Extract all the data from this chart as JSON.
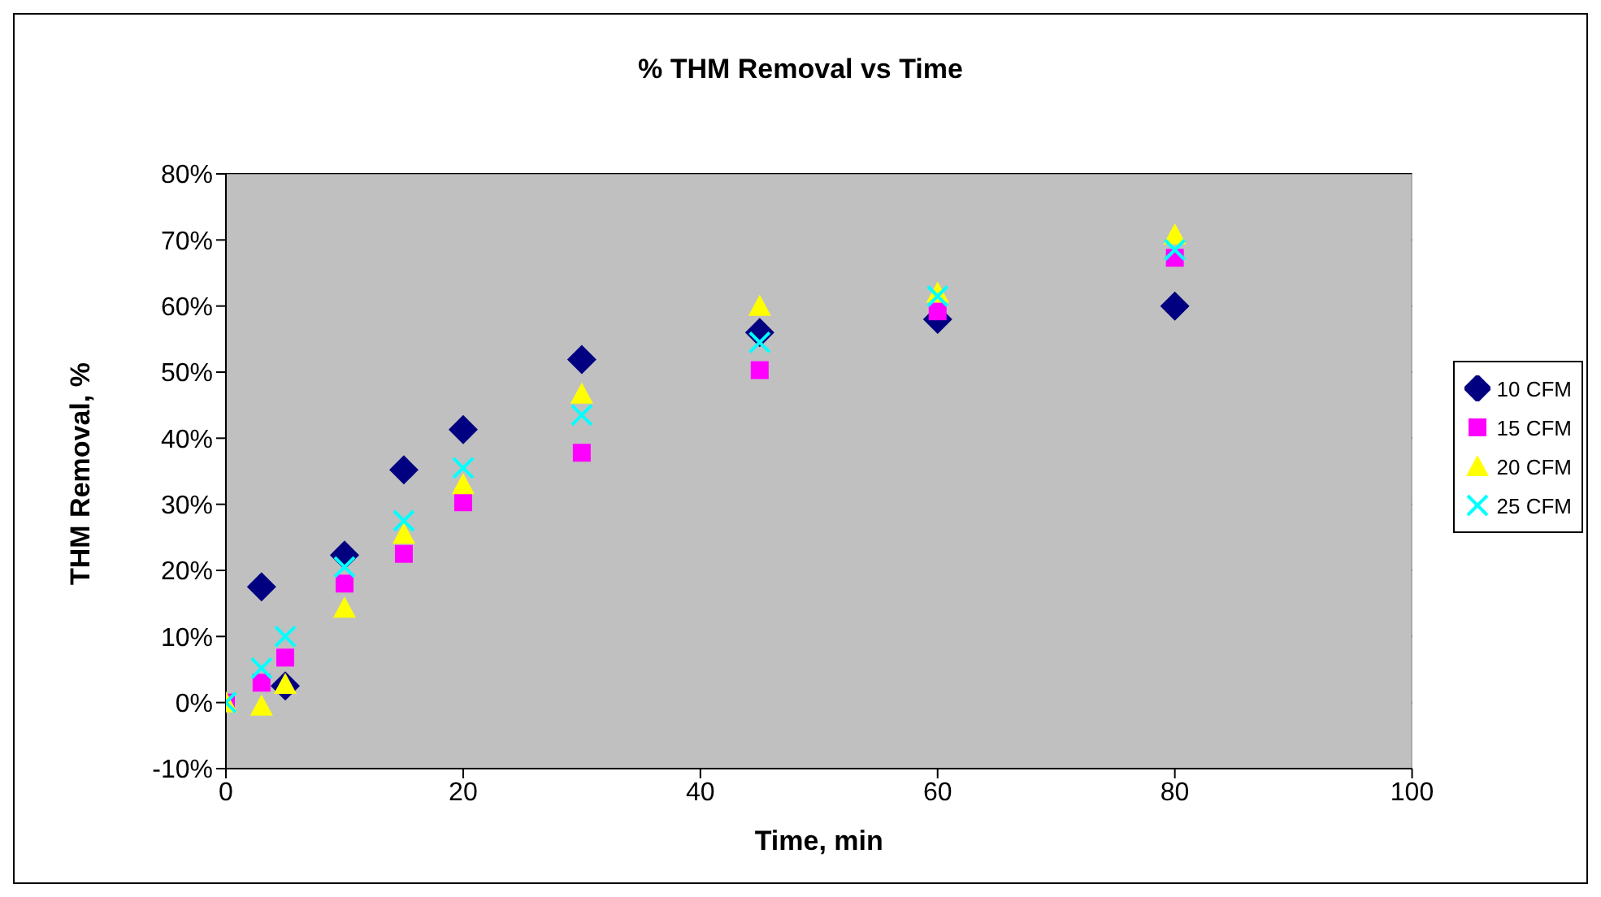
{
  "chart_data": {
    "type": "scatter",
    "title": "% THM Removal vs Time",
    "xlabel": "Time, min",
    "ylabel": "THM Removal, %",
    "x": [
      0,
      3,
      5,
      10,
      15,
      20,
      30,
      45,
      60,
      80
    ],
    "series": [
      {
        "name": "10 CFM",
        "color": "#000080",
        "marker": "diamond",
        "values": [
          null,
          17.5,
          2.5,
          22.3,
          35.2,
          41.3,
          51.9,
          56,
          58,
          60
        ]
      },
      {
        "name": "15 CFM",
        "color": "#ff00ff",
        "marker": "square",
        "values": [
          0,
          3,
          6.8,
          18,
          22.5,
          30.3,
          37.8,
          50.3,
          59.2,
          67.3
        ]
      },
      {
        "name": "20 CFM",
        "color": "#ffff00",
        "marker": "triangle",
        "values": [
          0,
          -0.5,
          2.8,
          14.3,
          25.5,
          33,
          46.7,
          60,
          62,
          70.8
        ]
      },
      {
        "name": "25 CFM",
        "color": "#00ffff",
        "marker": "cross",
        "values": [
          0,
          5.2,
          10,
          20.5,
          27.5,
          35.5,
          43.5,
          54.5,
          61.5,
          68.5
        ]
      }
    ],
    "xlim": [
      0,
      100
    ],
    "xticks": [
      0,
      20,
      40,
      60,
      80,
      100
    ],
    "ylim": [
      -10,
      80
    ],
    "yticks": [
      {
        "value": -10,
        "label": "-10%"
      },
      {
        "value": 0,
        "label": "0%"
      },
      {
        "value": 10,
        "label": "10%"
      },
      {
        "value": 20,
        "label": "20%"
      },
      {
        "value": 30,
        "label": "30%"
      },
      {
        "value": 40,
        "label": "40%"
      },
      {
        "value": 50,
        "label": "50%"
      },
      {
        "value": 60,
        "label": "60%"
      },
      {
        "value": 70,
        "label": "70%"
      },
      {
        "value": 80,
        "label": "80%"
      }
    ],
    "grid": "y",
    "legend": "right"
  }
}
